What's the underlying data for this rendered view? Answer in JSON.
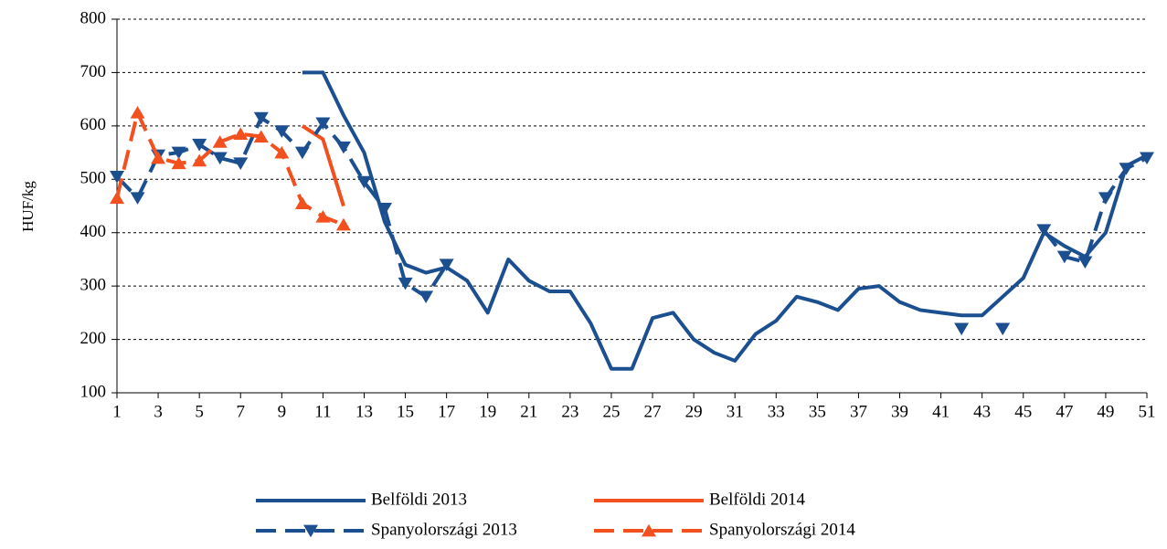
{
  "chart_data": {
    "type": "line",
    "y_label": "HUF/kg",
    "x": [
      1,
      2,
      3,
      4,
      5,
      6,
      7,
      8,
      9,
      10,
      11,
      12,
      13,
      14,
      15,
      16,
      17,
      18,
      19,
      20,
      21,
      22,
      23,
      24,
      25,
      26,
      27,
      28,
      29,
      30,
      31,
      32,
      33,
      34,
      35,
      36,
      37,
      38,
      39,
      40,
      41,
      42,
      43,
      44,
      45,
      46,
      47,
      48,
      49,
      50,
      51
    ],
    "xlim": [
      1,
      51
    ],
    "xticks": [
      1,
      3,
      5,
      7,
      9,
      11,
      13,
      15,
      17,
      19,
      21,
      23,
      25,
      27,
      29,
      31,
      33,
      35,
      37,
      39,
      41,
      43,
      45,
      47,
      49,
      51
    ],
    "ylim": [
      100,
      800
    ],
    "yticks": [
      100,
      200,
      300,
      400,
      500,
      600,
      700,
      800
    ],
    "grid": true,
    "legend": "bottom",
    "series": [
      {
        "name": "Belföldi 2013",
        "color": "#1c4f8f",
        "dashed": false,
        "marker": "none",
        "values": [
          null,
          null,
          null,
          null,
          null,
          null,
          null,
          null,
          null,
          700,
          700,
          620,
          550,
          420,
          340,
          325,
          335,
          310,
          250,
          350,
          310,
          290,
          290,
          230,
          145,
          145,
          240,
          250,
          200,
          175,
          160,
          210,
          235,
          280,
          270,
          255,
          295,
          300,
          270,
          255,
          250,
          245,
          245,
          280,
          315,
          400,
          375,
          355,
          400,
          525,
          545
        ]
      },
      {
        "name": "Belföldi 2014",
        "color": "#f2501e",
        "dashed": false,
        "marker": "none",
        "values": [
          null,
          null,
          null,
          null,
          null,
          null,
          null,
          null,
          null,
          600,
          575,
          450,
          null,
          null,
          null,
          null,
          null,
          null,
          null,
          null,
          null,
          null,
          null,
          null,
          null,
          null,
          null,
          null,
          null,
          null,
          null,
          null,
          null,
          null,
          null,
          null,
          null,
          null,
          null,
          null,
          null,
          null,
          null,
          null,
          null,
          null,
          null,
          null,
          null,
          null,
          null
        ]
      },
      {
        "name": "Spanyolországi 2013",
        "color": "#1c4f8f",
        "dashed": true,
        "marker": "down",
        "values": [
          505,
          465,
          545,
          550,
          565,
          540,
          530,
          615,
          590,
          550,
          605,
          560,
          495,
          445,
          305,
          280,
          340,
          null,
          null,
          null,
          null,
          null,
          null,
          null,
          null,
          null,
          null,
          null,
          null,
          null,
          null,
          null,
          null,
          null,
          null,
          null,
          null,
          null,
          null,
          null,
          null,
          220,
          null,
          220,
          null,
          405,
          355,
          345,
          465,
          520,
          540
        ]
      },
      {
        "name": "Spanyolországi 2014",
        "color": "#f2501e",
        "dashed": true,
        "marker": "up",
        "values": [
          465,
          625,
          540,
          530,
          535,
          570,
          585,
          580,
          550,
          455,
          430,
          415,
          null,
          null,
          null,
          null,
          null,
          null,
          null,
          null,
          null,
          null,
          null,
          null,
          null,
          null,
          null,
          null,
          null,
          null,
          null,
          null,
          null,
          null,
          null,
          null,
          null,
          null,
          null,
          null,
          null,
          null,
          null,
          null,
          null,
          null,
          null,
          null,
          null,
          null,
          null
        ]
      }
    ]
  }
}
